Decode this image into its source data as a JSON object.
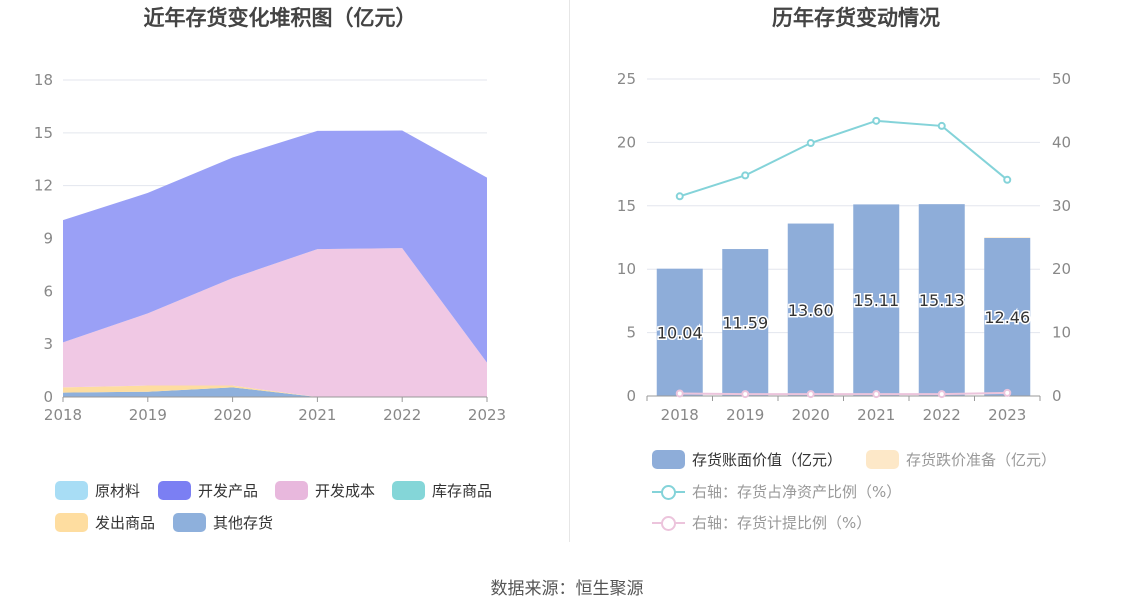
{
  "chart_data": [
    {
      "type": "area",
      "title": "近年存货变化堆积图（亿元）",
      "x": [
        "2018",
        "2019",
        "2020",
        "2021",
        "2022",
        "2023"
      ],
      "ylim": [
        0,
        18
      ],
      "yticks": [
        "0",
        "3",
        "6",
        "9",
        "12",
        "15",
        "18"
      ],
      "grid": true,
      "legend_position": "bottom",
      "series": [
        {
          "name": "其他存货",
          "color": "#8eb0dc",
          "values": [
            0.25,
            0.3,
            0.55,
            0.0,
            0.0,
            0.0
          ]
        },
        {
          "name": "发出商品",
          "color": "#fedda0",
          "values": [
            0.3,
            0.35,
            0.1,
            0.0,
            0.0,
            0.0
          ]
        },
        {
          "name": "库存商品",
          "color": "#84d6d8",
          "values": [
            0.0,
            0.0,
            0.0,
            0.0,
            0.0,
            0.0
          ]
        },
        {
          "name": "开发成本",
          "color": "#f0c8e4",
          "values": [
            2.55,
            4.1,
            6.1,
            8.4,
            8.45,
            1.95
          ]
        },
        {
          "name": "开发产品",
          "color": "#9aa0f6",
          "values": [
            6.94,
            6.84,
            6.85,
            6.71,
            6.68,
            10.51
          ]
        },
        {
          "name": "原材料",
          "color": "#a8ddf5",
          "values": [
            0.0,
            0.0,
            0.0,
            0.0,
            0.0,
            0.0
          ]
        }
      ],
      "legend": [
        {
          "name": "原材料",
          "color": "#a8ddf5"
        },
        {
          "name": "开发产品",
          "color": "#7b7ff3"
        },
        {
          "name": "开发成本",
          "color": "#e8b8dd"
        },
        {
          "name": "库存商品",
          "color": "#84d6d8"
        },
        {
          "name": "发出商品",
          "color": "#fedda0"
        },
        {
          "name": "其他存货",
          "color": "#8eb0dc"
        }
      ]
    },
    {
      "type": "bar",
      "title": "历年存货变动情况",
      "categories": [
        "2018",
        "2019",
        "2020",
        "2021",
        "2022",
        "2023"
      ],
      "ylim": [
        0,
        25
      ],
      "yticks": [
        "0",
        "5",
        "10",
        "15",
        "20",
        "25"
      ],
      "y2lim": [
        0,
        50
      ],
      "y2ticks": [
        "0",
        "10",
        "20",
        "30",
        "40",
        "50"
      ],
      "grid": true,
      "legend_position": "bottom",
      "series": [
        {
          "name": "存货账面价值（亿元）",
          "type": "bar",
          "color": "#8eadd9",
          "values": [
            10.04,
            11.59,
            13.6,
            15.11,
            15.13,
            12.46
          ],
          "labels": [
            "10.04",
            "11.59",
            "13.60",
            "15.11",
            "15.13",
            "12.46"
          ]
        },
        {
          "name": "存货跌价准备（亿元）",
          "type": "bar",
          "color": "#fde8c8",
          "values": [
            0.0,
            0.0,
            0.0,
            0.0,
            0.0,
            0.05
          ]
        },
        {
          "name": "右轴：存货占净资产比例（%）",
          "type": "line",
          "axis": "right",
          "color": "#84d3d9",
          "values": [
            31.5,
            34.8,
            39.9,
            43.4,
            42.6,
            34.1
          ]
        },
        {
          "name": "右轴：存货计提比例（%）",
          "type": "line",
          "axis": "right",
          "color": "#ecc4dc",
          "values": [
            0.4,
            0.3,
            0.3,
            0.3,
            0.3,
            0.5
          ]
        }
      ]
    }
  ],
  "source": "数据来源：恒生聚源"
}
